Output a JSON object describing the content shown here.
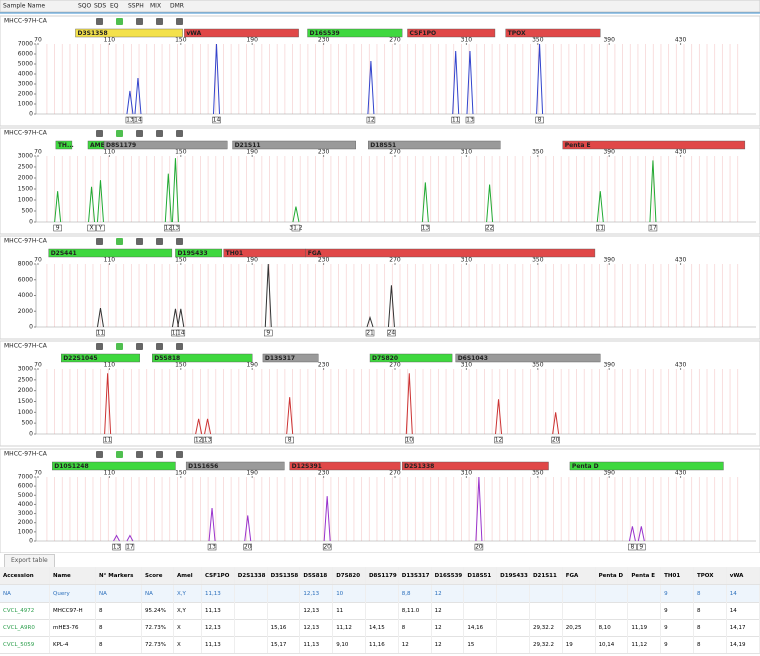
{
  "header": {
    "columns": [
      "Sample Name",
      "SQO",
      "SDS",
      "EQ",
      "SSPH",
      "MIX",
      "DMR"
    ]
  },
  "panels": [
    {
      "sample": "MHCC-97H-CA",
      "color": "#3344cc",
      "loci": [
        {
          "name": "D3S1358",
          "color": "#f3e14b",
          "start": 91,
          "end": 151
        },
        {
          "name": "vWA",
          "color": "#e04848",
          "start": 152,
          "end": 216
        },
        {
          "name": "D16S539",
          "color": "#3fd83f",
          "start": 221,
          "end": 274
        },
        {
          "name": "CSF1PO",
          "color": "#e04848",
          "start": 277,
          "end": 326
        },
        {
          "name": "TPOX",
          "color": "#e04848",
          "start": 332,
          "end": 385
        }
      ],
      "xticks": [
        70,
        110,
        150,
        190,
        230,
        270,
        310,
        350,
        390,
        430
      ],
      "ylim": [
        0,
        7000
      ],
      "yticks": [
        0,
        1000,
        2000,
        3000,
        4000,
        5000,
        6000,
        7000
      ],
      "peaks": [
        {
          "bp": 121.5,
          "height": 2300,
          "allele": "13"
        },
        {
          "bp": 126,
          "height": 3600,
          "allele": "14"
        },
        {
          "bp": 170,
          "height": 7000,
          "allele": "14"
        },
        {
          "bp": 256.5,
          "height": 5300,
          "allele": "12"
        },
        {
          "bp": 304,
          "height": 6300,
          "allele": "11"
        },
        {
          "bp": 312,
          "height": 6300,
          "allele": "13"
        },
        {
          "bp": 351,
          "height": 7000,
          "allele": "8"
        }
      ]
    },
    {
      "sample": "MHCC-97H-CA",
      "color": "#22aa33",
      "loci": [
        {
          "name": "TH...",
          "color": "#3fd83f",
          "start": 80,
          "end": 89
        },
        {
          "name": "AMEL",
          "color": "#3fd83f",
          "start": 98,
          "end": 107
        },
        {
          "name": "D8S1179",
          "color": "#9a9a9a",
          "start": 107,
          "end": 176
        },
        {
          "name": "D21S11",
          "color": "#9a9a9a",
          "start": 179,
          "end": 248
        },
        {
          "name": "D18S51",
          "color": "#9a9a9a",
          "start": 255,
          "end": 329
        },
        {
          "name": "Penta E",
          "color": "#e04848",
          "start": 364,
          "end": 466
        }
      ],
      "xticks": [
        70,
        110,
        150,
        190,
        230,
        270,
        310,
        350,
        390,
        430
      ],
      "ylim": [
        0,
        3000
      ],
      "yticks": [
        0,
        500,
        1000,
        1500,
        2000,
        2500,
        3000
      ],
      "peaks": [
        {
          "bp": 81,
          "height": 1400,
          "allele": "9"
        },
        {
          "bp": 100,
          "height": 1600,
          "allele": "X"
        },
        {
          "bp": 105,
          "height": 1900,
          "allele": "Y"
        },
        {
          "bp": 143,
          "height": 2200,
          "allele": "12"
        },
        {
          "bp": 147,
          "height": 2900,
          "allele": "13"
        },
        {
          "bp": 214.5,
          "height": 700,
          "allele": "31.2"
        },
        {
          "bp": 287,
          "height": 1800,
          "allele": "13"
        },
        {
          "bp": 323,
          "height": 1700,
          "allele": "22"
        },
        {
          "bp": 385,
          "height": 1400,
          "allele": "11"
        },
        {
          "bp": 414.5,
          "height": 2800,
          "allele": "17"
        }
      ]
    },
    {
      "sample": "MHCC-97H-CA",
      "color": "#333333",
      "loci": [
        {
          "name": "D2S441",
          "color": "#3fd83f",
          "start": 76,
          "end": 145
        },
        {
          "name": "D19S433",
          "color": "#3fd83f",
          "start": 147,
          "end": 173
        },
        {
          "name": "TH01",
          "color": "#e04848",
          "start": 174,
          "end": 220
        },
        {
          "name": "FGA",
          "color": "#e04848",
          "start": 220,
          "end": 382
        }
      ],
      "xticks": [
        70,
        110,
        150,
        190,
        230,
        270,
        310,
        350,
        390,
        430
      ],
      "ylim": [
        0,
        8000
      ],
      "yticks": [
        0,
        2000,
        4000,
        6000,
        8000
      ],
      "peaks": [
        {
          "bp": 105,
          "height": 2400,
          "allele": "11"
        },
        {
          "bp": 147,
          "height": 2300,
          "allele": "13"
        },
        {
          "bp": 150,
          "height": 2300,
          "allele": "14"
        },
        {
          "bp": 199,
          "height": 8000,
          "allele": "9"
        },
        {
          "bp": 256,
          "height": 1200,
          "allele": "21"
        },
        {
          "bp": 268,
          "height": 5300,
          "allele": "24"
        }
      ]
    },
    {
      "sample": "MHCC-97H-CA",
      "color": "#cc3333",
      "loci": [
        {
          "name": "D22S1045",
          "color": "#3fd83f",
          "start": 83,
          "end": 127
        },
        {
          "name": "D5S818",
          "color": "#3fd83f",
          "start": 134,
          "end": 190
        },
        {
          "name": "D13S317",
          "color": "#9a9a9a",
          "start": 196,
          "end": 227
        },
        {
          "name": "D7S820",
          "color": "#3fd83f",
          "start": 256,
          "end": 302
        },
        {
          "name": "D6S1043",
          "color": "#9a9a9a",
          "start": 304,
          "end": 385
        }
      ],
      "xticks": [
        70,
        110,
        150,
        190,
        230,
        270,
        310,
        350,
        390,
        430
      ],
      "ylim": [
        0,
        3000
      ],
      "yticks": [
        0,
        500,
        1000,
        1500,
        2000,
        2500,
        3000
      ],
      "peaks": [
        {
          "bp": 109,
          "height": 2800,
          "allele": "11"
        },
        {
          "bp": 160,
          "height": 700,
          "allele": "12"
        },
        {
          "bp": 165,
          "height": 700,
          "allele": "13"
        },
        {
          "bp": 211,
          "height": 1700,
          "allele": "8"
        },
        {
          "bp": 278,
          "height": 2800,
          "allele": "10"
        },
        {
          "bp": 328,
          "height": 1600,
          "allele": "12"
        },
        {
          "bp": 360,
          "height": 1000,
          "allele": "20"
        }
      ]
    },
    {
      "sample": "MHCC-97H-CA",
      "color": "#9933cc",
      "loci": [
        {
          "name": "D10S1248",
          "color": "#3fd83f",
          "start": 78,
          "end": 147
        },
        {
          "name": "D1S1656",
          "color": "#9a9a9a",
          "start": 153,
          "end": 208
        },
        {
          "name": "D12S391",
          "color": "#e04848",
          "start": 211,
          "end": 273
        },
        {
          "name": "D2S1338",
          "color": "#e04848",
          "start": 274,
          "end": 356
        },
        {
          "name": "Penta D",
          "color": "#3fd83f",
          "start": 368,
          "end": 454
        }
      ],
      "xticks": [
        70,
        110,
        150,
        190,
        230,
        270,
        310,
        350,
        390,
        430
      ],
      "ylim": [
        0,
        7000
      ],
      "yticks": [
        0,
        1000,
        2000,
        3000,
        4000,
        5000,
        6000,
        7000
      ],
      "peaks": [
        {
          "bp": 114,
          "height": 600,
          "allele": "13"
        },
        {
          "bp": 121.5,
          "height": 600,
          "allele": "17"
        },
        {
          "bp": 167.5,
          "height": 3600,
          "allele": "13"
        },
        {
          "bp": 187.5,
          "height": 2800,
          "allele": "20"
        },
        {
          "bp": 232,
          "height": 4900,
          "allele": "20"
        },
        {
          "bp": 317,
          "height": 7000,
          "allele": "20"
        },
        {
          "bp": 403,
          "height": 1600,
          "allele": "8"
        },
        {
          "bp": 408,
          "height": 1600,
          "allele": "9"
        }
      ]
    }
  ],
  "table": {
    "tab": "Export table",
    "columns": [
      "Accession",
      "Name",
      "N° Markers",
      "Score",
      "Amel",
      "CSF1PO",
      "D2S1338",
      "D3S1358",
      "D5S818",
      "D7S820",
      "D8S1179",
      "D13S317",
      "D16S539",
      "D18S51",
      "D19S433",
      "D21S11",
      "FGA",
      "Penta D",
      "Penta E",
      "TH01",
      "TPOX",
      "vWA"
    ],
    "rows": [
      [
        "NA",
        "Query",
        "NA",
        "NA",
        "X,Y",
        "11,13",
        null,
        null,
        "12,13",
        "10",
        null,
        "8,8",
        "12",
        null,
        null,
        null,
        null,
        null,
        null,
        "9",
        "8",
        "14"
      ],
      [
        "CVCL_4972",
        "MHCC97-H",
        "8",
        "95.24%",
        "X,Y",
        "11,13",
        null,
        null,
        "12,13",
        "11",
        null,
        "8,11.0",
        "12",
        null,
        null,
        null,
        null,
        null,
        null,
        "9",
        "8",
        "14"
      ],
      [
        "CVCL_A9R0",
        "mHE3-76",
        "8",
        "72.73%",
        "X",
        "12,13",
        null,
        "15,16",
        "12,13",
        "11,12",
        "14,15",
        "8",
        "12",
        "14,16",
        null,
        "29,32.2",
        "20,25",
        "8,10",
        "11,19",
        "9",
        "8",
        "14,17"
      ],
      [
        "CVCL_5059",
        "KPL-4",
        "8",
        "72.73%",
        "X",
        "11,13",
        null,
        "15,17",
        "11,13",
        "9,10",
        "11,16",
        "12",
        "12",
        "15",
        null,
        "29,32.2",
        "19",
        "10,14",
        "11,12",
        "9",
        "8",
        "14,19"
      ]
    ]
  }
}
